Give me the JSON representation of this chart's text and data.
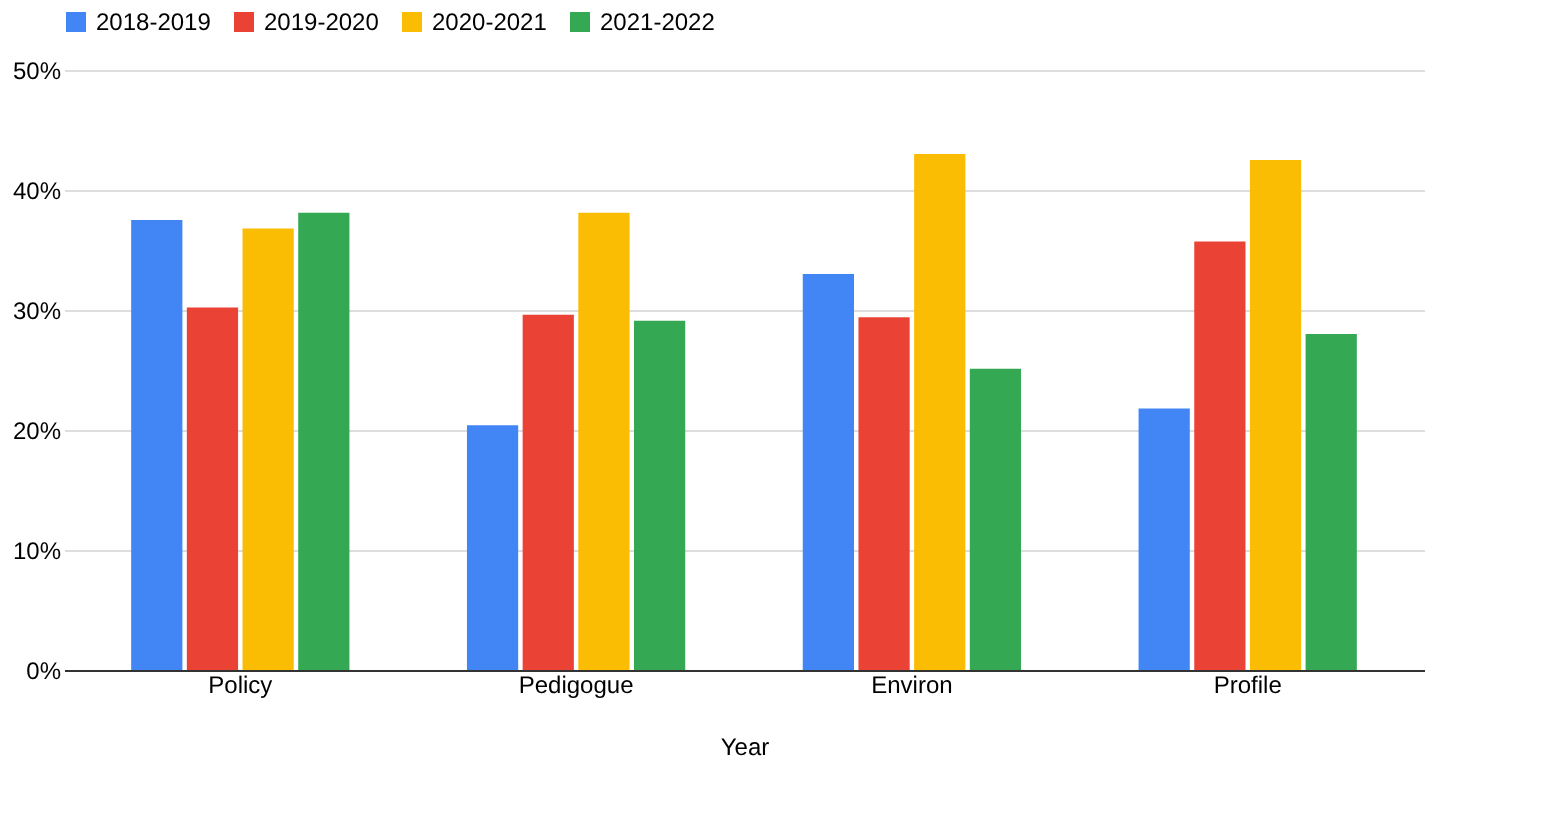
{
  "chart_data": {
    "type": "bar",
    "xlabel": "Year",
    "categories": [
      "Policy",
      "Pedigogue",
      "Environ",
      "Profile"
    ],
    "series": [
      {
        "name": "2018-2019",
        "color": "#4285f4",
        "values": [
          37.5,
          20.4,
          33.0,
          21.8
        ]
      },
      {
        "name": "2019-2020",
        "color": "#ea4335",
        "values": [
          30.2,
          29.6,
          29.4,
          35.7
        ]
      },
      {
        "name": "2020-2021",
        "color": "#fbbc04",
        "values": [
          36.8,
          38.1,
          43.0,
          42.5
        ]
      },
      {
        "name": "2021-2022",
        "color": "#34a853",
        "values": [
          38.1,
          29.1,
          25.1,
          28.0
        ]
      }
    ],
    "ylim": [
      0,
      50
    ],
    "yticks": [
      {
        "value": 0,
        "label": "0%"
      },
      {
        "value": 10,
        "label": "10%"
      },
      {
        "value": 20,
        "label": "20%"
      },
      {
        "value": 30,
        "label": "30%"
      },
      {
        "value": 40,
        "label": "40%"
      },
      {
        "value": 50,
        "label": "50%"
      }
    ],
    "grid": "y",
    "legend": "top"
  }
}
